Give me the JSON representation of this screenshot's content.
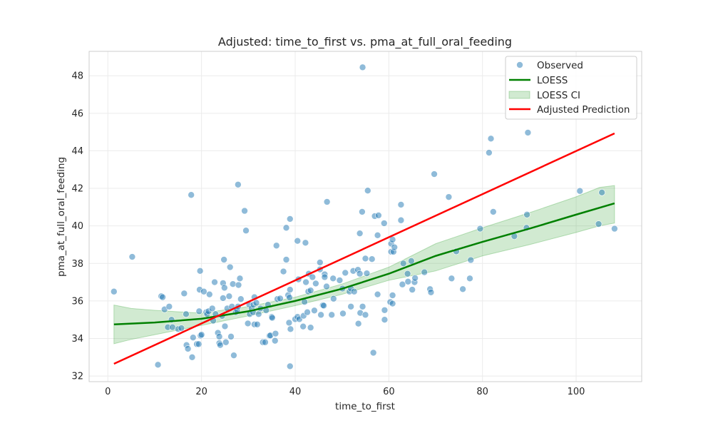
{
  "chart_data": {
    "type": "scatter",
    "title": "Adjusted: time_to_first vs. pma_at_full_oral_feeding",
    "xlabel": "time_to_first",
    "ylabel": "pma_at_full_oral_feeding",
    "xlim": [
      -4,
      114
    ],
    "ylim": [
      31.7,
      49.3
    ],
    "xticks": [
      0,
      20,
      40,
      60,
      80,
      100
    ],
    "yticks": [
      32,
      34,
      36,
      38,
      40,
      42,
      44,
      46,
      48
    ],
    "grid": true,
    "legend_position": "top-right",
    "colors": {
      "observed": "#1f77b4",
      "loess": "#008000",
      "loess_ci": "#2ca02c",
      "adjusted": "#ff0000",
      "grid": "#ebebeb",
      "spine": "#cccccc"
    },
    "legend": [
      "Observed",
      "LOESS",
      "LOESS CI",
      "Adjusted Prediction"
    ],
    "series": [
      {
        "name": "Observed",
        "kind": "scatter",
        "points": [
          [
            1.3,
            36.5
          ],
          [
            5.2,
            38.35
          ],
          [
            10.7,
            32.6
          ],
          [
            11.4,
            36.25
          ],
          [
            11.7,
            36.2
          ],
          [
            12.1,
            35.55
          ],
          [
            12.8,
            34.6
          ],
          [
            13.1,
            35.7
          ],
          [
            13.6,
            35.0
          ],
          [
            13.8,
            34.6
          ],
          [
            15,
            34.5
          ],
          [
            15.7,
            34.55
          ],
          [
            16.3,
            36.4
          ],
          [
            16.7,
            35.3
          ],
          [
            16.8,
            33.65
          ],
          [
            17.1,
            33.45
          ],
          [
            17.8,
            41.65
          ],
          [
            18.0,
            33.0
          ],
          [
            18.2,
            34.05
          ],
          [
            19.0,
            33.7
          ],
          [
            19.4,
            33.7
          ],
          [
            19.5,
            35.45
          ],
          [
            19.6,
            36.6
          ],
          [
            19.7,
            37.6
          ],
          [
            19.8,
            34.15
          ],
          [
            20,
            34.2
          ],
          [
            20.5,
            36.5
          ],
          [
            21,
            35.4
          ],
          [
            21.2,
            35.3
          ],
          [
            21.5,
            35.45
          ],
          [
            21.7,
            36.35
          ],
          [
            22.3,
            35.6
          ],
          [
            22.5,
            34.95
          ],
          [
            22.8,
            37.0
          ],
          [
            23,
            35.3
          ],
          [
            23.5,
            34.3
          ],
          [
            23.8,
            34.1
          ],
          [
            23.8,
            33.75
          ],
          [
            24.0,
            33.65
          ],
          [
            24.4,
            35.2
          ],
          [
            24.6,
            36.15
          ],
          [
            24.6,
            36.95
          ],
          [
            24.8,
            38.2
          ],
          [
            24.9,
            36.7
          ],
          [
            25,
            34.65
          ],
          [
            25.2,
            33.8
          ],
          [
            25.5,
            35.6
          ],
          [
            25.9,
            36.25
          ],
          [
            26.1,
            37.8
          ],
          [
            26.3,
            34.1
          ],
          [
            26.5,
            35.7
          ],
          [
            26.7,
            36.9
          ],
          [
            26.9,
            33.1
          ],
          [
            27.3,
            35.4
          ],
          [
            27.6,
            35.5
          ],
          [
            27.8,
            42.2
          ],
          [
            27.8,
            35.7
          ],
          [
            27.9,
            36.85
          ],
          [
            28.2,
            37.2
          ],
          [
            28.4,
            36.1
          ],
          [
            29.2,
            40.8
          ],
          [
            29.5,
            39.75
          ],
          [
            29.9,
            34.8
          ],
          [
            30.2,
            35.8
          ],
          [
            30.3,
            35.3
          ],
          [
            30.7,
            35.6
          ],
          [
            31,
            35.4
          ],
          [
            31.1,
            35.8
          ],
          [
            31.3,
            36.2
          ],
          [
            31.3,
            34.75
          ],
          [
            31.7,
            35.9
          ],
          [
            31.9,
            34.75
          ],
          [
            32.2,
            35.3
          ],
          [
            32.6,
            35.6
          ],
          [
            33.1,
            33.8
          ],
          [
            33.6,
            33.8
          ],
          [
            33.8,
            35.5
          ],
          [
            34.2,
            35.8
          ],
          [
            34.5,
            34.15
          ],
          [
            34.7,
            34.16
          ],
          [
            35,
            35.15
          ],
          [
            35.1,
            35.1
          ],
          [
            35.7,
            33.88
          ],
          [
            35.8,
            34.26
          ],
          [
            36.0,
            38.95
          ],
          [
            36.2,
            36.1
          ],
          [
            36.8,
            36.13
          ],
          [
            37.5,
            37.57
          ],
          [
            38.1,
            38.2
          ],
          [
            38.1,
            39.9
          ],
          [
            38.5,
            36.31
          ],
          [
            38.7,
            34.84
          ],
          [
            38.8,
            36.18
          ],
          [
            38.9,
            36.6
          ],
          [
            38.9,
            40.37
          ],
          [
            38.9,
            32.52
          ],
          [
            39,
            34.5
          ],
          [
            40,
            35.03
          ],
          [
            40.5,
            35.15
          ],
          [
            40.5,
            39.2
          ],
          [
            40.7,
            37.15
          ],
          [
            40.9,
            35.03
          ],
          [
            41.7,
            34.64
          ],
          [
            41.8,
            35.21
          ],
          [
            42,
            35.95
          ],
          [
            42.2,
            39.1
          ],
          [
            42.3,
            37.0
          ],
          [
            42.6,
            35.4
          ],
          [
            42.8,
            36.5
          ],
          [
            42.9,
            37.45
          ],
          [
            43.3,
            36.56
          ],
          [
            43.3,
            34.58
          ],
          [
            43.7,
            37.27
          ],
          [
            44.1,
            35.49
          ],
          [
            44.4,
            36.93
          ],
          [
            45.3,
            38.05
          ],
          [
            45.3,
            37.68
          ],
          [
            45.5,
            35.26
          ],
          [
            45.9,
            35.77
          ],
          [
            46.1,
            35.75
          ],
          [
            46.3,
            37.42
          ],
          [
            46.3,
            37.27
          ],
          [
            46.7,
            36.77
          ],
          [
            46.8,
            41.28
          ],
          [
            47.8,
            35.26
          ],
          [
            48.1,
            37.2
          ],
          [
            48.2,
            36.12
          ],
          [
            49.5,
            37.1
          ],
          [
            50.1,
            36.66
          ],
          [
            50.2,
            35.33
          ],
          [
            50.7,
            37.5
          ],
          [
            51.6,
            36.5
          ],
          [
            51.9,
            36.66
          ],
          [
            51.9,
            35.7
          ],
          [
            52.4,
            37.6
          ],
          [
            52.6,
            36.5
          ],
          [
            53.4,
            37.66
          ],
          [
            53.5,
            34.79
          ],
          [
            53.8,
            37.45
          ],
          [
            53.8,
            39.6
          ],
          [
            53.9,
            35.36
          ],
          [
            54.3,
            40.75
          ],
          [
            54.4,
            35.7
          ],
          [
            54.4,
            48.45
          ],
          [
            55,
            35.26
          ],
          [
            55,
            38.26
          ],
          [
            55.3,
            37.47
          ],
          [
            55.5,
            41.88
          ],
          [
            56.4,
            38.23
          ],
          [
            56.7,
            33.24
          ],
          [
            57,
            40.52
          ],
          [
            57.6,
            39.5
          ],
          [
            57.6,
            36.35
          ],
          [
            57.8,
            40.56
          ],
          [
            59,
            40.14
          ],
          [
            59.1,
            35.51
          ],
          [
            59.1,
            35.0
          ],
          [
            60.3,
            35.94
          ],
          [
            60.5,
            39.05
          ],
          [
            60.5,
            38.62
          ],
          [
            60.8,
            39.27
          ],
          [
            60.8,
            36.3
          ],
          [
            60.8,
            35.86
          ],
          [
            61,
            38.62
          ],
          [
            61.2,
            38.86
          ],
          [
            62.6,
            41.13
          ],
          [
            62.6,
            40.3
          ],
          [
            62.9,
            36.88
          ],
          [
            63.1,
            38.0
          ],
          [
            64,
            37.45
          ],
          [
            64.1,
            37.03
          ],
          [
            64.8,
            38.13
          ],
          [
            65,
            36.6
          ],
          [
            65.5,
            37.0
          ],
          [
            65.6,
            37.22
          ],
          [
            67.6,
            37.53
          ],
          [
            68.8,
            36.63
          ],
          [
            69,
            36.46
          ],
          [
            69.7,
            42.76
          ],
          [
            72.8,
            41.54
          ],
          [
            73.4,
            37.2
          ],
          [
            74.4,
            38.64
          ],
          [
            75.8,
            36.63
          ],
          [
            77.3,
            37.2
          ],
          [
            77.5,
            38.18
          ],
          [
            79.5,
            39.85
          ],
          [
            81.4,
            43.9
          ],
          [
            81.8,
            44.65
          ],
          [
            82.3,
            40.75
          ],
          [
            86.8,
            39.45
          ],
          [
            89.4,
            39.9
          ],
          [
            89.5,
            40.6
          ],
          [
            89.7,
            44.97
          ],
          [
            100.8,
            41.86
          ],
          [
            104.8,
            40.1
          ],
          [
            105.5,
            41.78
          ],
          [
            108.2,
            39.85
          ]
        ]
      },
      {
        "name": "LOESS",
        "kind": "line",
        "points": [
          [
            1.3,
            34.75
          ],
          [
            10,
            34.85
          ],
          [
            20,
            35.05
          ],
          [
            30,
            35.45
          ],
          [
            40,
            36.0
          ],
          [
            50,
            36.65
          ],
          [
            60,
            37.45
          ],
          [
            70,
            38.4
          ],
          [
            80,
            39.15
          ],
          [
            90,
            39.85
          ],
          [
            100,
            40.6
          ],
          [
            108.2,
            41.2
          ]
        ]
      },
      {
        "name": "LOESS CI",
        "kind": "band",
        "x": [
          1.3,
          5,
          10,
          20,
          30,
          40,
          50,
          60,
          70,
          80,
          90,
          100,
          105,
          108.2
        ],
        "lower": [
          33.72,
          33.95,
          34.2,
          34.7,
          35.2,
          35.75,
          36.35,
          37.1,
          37.6,
          38.4,
          39.0,
          39.65,
          40.0,
          40.15
        ],
        "upper": [
          35.78,
          35.6,
          35.5,
          35.35,
          35.7,
          36.2,
          36.9,
          37.8,
          39.05,
          39.9,
          40.7,
          41.55,
          42.05,
          42.15
        ]
      },
      {
        "name": "Adjusted Prediction",
        "kind": "line",
        "points": [
          [
            1.3,
            32.65
          ],
          [
            108.2,
            44.93
          ]
        ]
      }
    ]
  }
}
